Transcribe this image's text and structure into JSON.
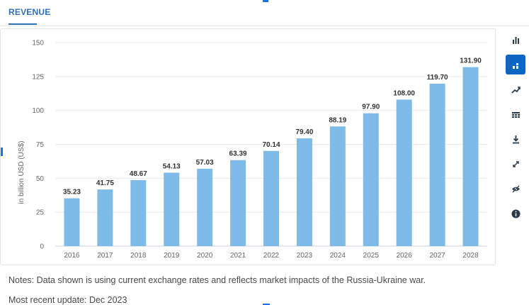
{
  "tabs": {
    "active_label": "REVENUE"
  },
  "toolbar": {
    "items": [
      {
        "icon": "bar-chart-icon",
        "active": false
      },
      {
        "icon": "stacked-chart-icon",
        "active": true
      },
      {
        "icon": "trend-line-icon",
        "active": false
      },
      {
        "icon": "table-icon",
        "active": false
      },
      {
        "icon": "download-icon",
        "active": false
      },
      {
        "icon": "expand-icon",
        "active": false
      },
      {
        "icon": "eye-hide-icon",
        "active": false
      },
      {
        "icon": "info-icon",
        "active": false
      }
    ],
    "active_color": "#0b66c3"
  },
  "chart_data": {
    "type": "bar",
    "title": "",
    "xlabel": "",
    "ylabel": "in billion USD (US$)",
    "categories": [
      "2016",
      "2017",
      "2018",
      "2019",
      "2020",
      "2021",
      "2022",
      "2023",
      "2024",
      "2025",
      "2026",
      "2027",
      "2028"
    ],
    "values": [
      35.23,
      41.75,
      48.67,
      54.13,
      57.03,
      63.39,
      70.14,
      79.4,
      88.19,
      97.9,
      108.0,
      119.7,
      131.9
    ],
    "value_labels": [
      "35.23",
      "41.75",
      "48.67",
      "54.13",
      "57.03",
      "63.39",
      "70.14",
      "79.40",
      "88.19",
      "97.90",
      "108.00",
      "119.70",
      "131.90"
    ],
    "ylim": [
      0,
      150
    ],
    "yticks": [
      "0",
      "25",
      "50",
      "75",
      "100",
      "125",
      "150"
    ],
    "ytick_values": [
      0,
      25,
      50,
      75,
      100,
      125,
      150
    ],
    "grid": true,
    "legend": "none",
    "bar_color": "#7fbbe9"
  },
  "footer": {
    "notes": "Notes: Data shown is using current exchange rates and reflects market impacts of the Russia-Ukraine war.",
    "update": "Most recent update: Dec 2023"
  }
}
